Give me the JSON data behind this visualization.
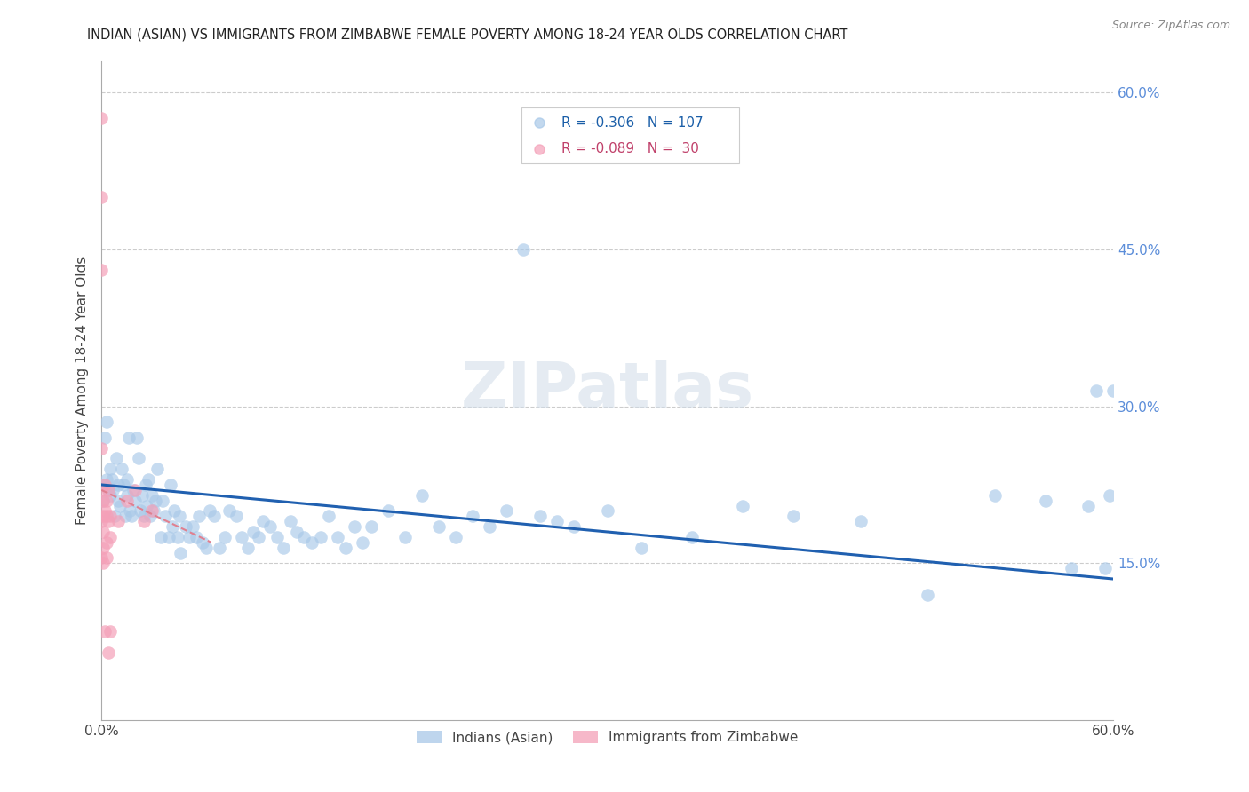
{
  "title": "INDIAN (ASIAN) VS IMMIGRANTS FROM ZIMBABWE FEMALE POVERTY AMONG 18-24 YEAR OLDS CORRELATION CHART",
  "source": "Source: ZipAtlas.com",
  "ylabel": "Female Poverty Among 18-24 Year Olds",
  "xlim": [
    0.0,
    0.6
  ],
  "ylim": [
    0.0,
    0.63
  ],
  "legend1_R": "-0.306",
  "legend1_N": "107",
  "legend2_R": "-0.089",
  "legend2_N": "30",
  "color_indian": "#a8c8e8",
  "color_zimbabwe": "#f4a0b8",
  "trendline_indian_color": "#2060b0",
  "trendline_zimbabwe_color": "#e08090",
  "trendline_indian_x0": 0.0,
  "trendline_indian_x1": 0.6,
  "trendline_indian_y0": 0.225,
  "trendline_indian_y1": 0.135,
  "trendline_zimbabwe_x0": 0.0,
  "trendline_zimbabwe_x1": 0.065,
  "trendline_zimbabwe_y0": 0.22,
  "trendline_zimbabwe_y1": 0.17,
  "watermark": "ZIPatlas",
  "indian_x": [
    0.001,
    0.001,
    0.002,
    0.003,
    0.003,
    0.004,
    0.005,
    0.005,
    0.006,
    0.007,
    0.008,
    0.009,
    0.01,
    0.01,
    0.011,
    0.012,
    0.013,
    0.014,
    0.015,
    0.015,
    0.016,
    0.017,
    0.018,
    0.019,
    0.02,
    0.021,
    0.022,
    0.023,
    0.024,
    0.025,
    0.026,
    0.027,
    0.028,
    0.029,
    0.03,
    0.031,
    0.032,
    0.033,
    0.035,
    0.036,
    0.038,
    0.04,
    0.041,
    0.042,
    0.043,
    0.045,
    0.046,
    0.047,
    0.05,
    0.052,
    0.054,
    0.056,
    0.058,
    0.06,
    0.062,
    0.064,
    0.067,
    0.07,
    0.073,
    0.076,
    0.08,
    0.083,
    0.087,
    0.09,
    0.093,
    0.096,
    0.1,
    0.104,
    0.108,
    0.112,
    0.116,
    0.12,
    0.125,
    0.13,
    0.135,
    0.14,
    0.145,
    0.15,
    0.155,
    0.16,
    0.17,
    0.18,
    0.19,
    0.2,
    0.21,
    0.22,
    0.23,
    0.24,
    0.25,
    0.26,
    0.27,
    0.28,
    0.3,
    0.32,
    0.35,
    0.38,
    0.41,
    0.45,
    0.49,
    0.53,
    0.56,
    0.575,
    0.585,
    0.59,
    0.595,
    0.598,
    0.6
  ],
  "indian_y": [
    0.21,
    0.225,
    0.27,
    0.23,
    0.285,
    0.22,
    0.24,
    0.215,
    0.23,
    0.22,
    0.195,
    0.25,
    0.21,
    0.225,
    0.205,
    0.24,
    0.225,
    0.195,
    0.215,
    0.23,
    0.27,
    0.2,
    0.195,
    0.22,
    0.21,
    0.27,
    0.25,
    0.2,
    0.215,
    0.195,
    0.225,
    0.205,
    0.23,
    0.195,
    0.215,
    0.2,
    0.21,
    0.24,
    0.175,
    0.21,
    0.195,
    0.175,
    0.225,
    0.185,
    0.2,
    0.175,
    0.195,
    0.16,
    0.185,
    0.175,
    0.185,
    0.175,
    0.195,
    0.17,
    0.165,
    0.2,
    0.195,
    0.165,
    0.175,
    0.2,
    0.195,
    0.175,
    0.165,
    0.18,
    0.175,
    0.19,
    0.185,
    0.175,
    0.165,
    0.19,
    0.18,
    0.175,
    0.17,
    0.175,
    0.195,
    0.175,
    0.165,
    0.185,
    0.17,
    0.185,
    0.2,
    0.175,
    0.215,
    0.185,
    0.175,
    0.195,
    0.185,
    0.2,
    0.45,
    0.195,
    0.19,
    0.185,
    0.2,
    0.165,
    0.175,
    0.205,
    0.195,
    0.19,
    0.12,
    0.215,
    0.21,
    0.145,
    0.205,
    0.315,
    0.145,
    0.215,
    0.315
  ],
  "zimbabwe_x": [
    0.0,
    0.0,
    0.0,
    0.0,
    0.0,
    0.0,
    0.0,
    0.001,
    0.001,
    0.001,
    0.001,
    0.001,
    0.002,
    0.002,
    0.002,
    0.003,
    0.003,
    0.003,
    0.003,
    0.004,
    0.004,
    0.004,
    0.005,
    0.005,
    0.005,
    0.01,
    0.015,
    0.02,
    0.025,
    0.03
  ],
  "zimbabwe_y": [
    0.575,
    0.5,
    0.43,
    0.26,
    0.22,
    0.19,
    0.155,
    0.21,
    0.195,
    0.18,
    0.165,
    0.15,
    0.225,
    0.2,
    0.085,
    0.21,
    0.195,
    0.17,
    0.155,
    0.22,
    0.19,
    0.065,
    0.195,
    0.175,
    0.085,
    0.19,
    0.21,
    0.22,
    0.19,
    0.2
  ]
}
